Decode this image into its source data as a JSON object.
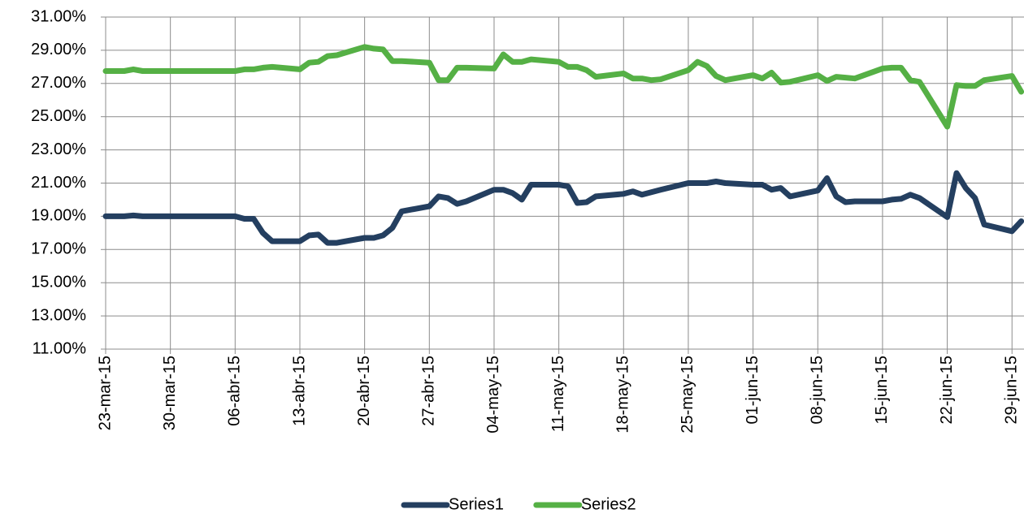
{
  "chart_data": {
    "type": "line",
    "x": [
      "2015-03-23",
      "2015-03-24",
      "2015-03-25",
      "2015-03-26",
      "2015-03-27",
      "2015-03-30",
      "2015-03-31",
      "2015-04-01",
      "2015-04-02",
      "2015-04-03",
      "2015-04-06",
      "2015-04-07",
      "2015-04-08",
      "2015-04-09",
      "2015-04-10",
      "2015-04-13",
      "2015-04-14",
      "2015-04-15",
      "2015-04-16",
      "2015-04-17",
      "2015-04-20",
      "2015-04-21",
      "2015-04-22",
      "2015-04-23",
      "2015-04-24",
      "2015-04-27",
      "2015-04-28",
      "2015-04-29",
      "2015-04-30",
      "2015-05-01",
      "2015-05-04",
      "2015-05-05",
      "2015-05-06",
      "2015-05-07",
      "2015-05-08",
      "2015-05-11",
      "2015-05-12",
      "2015-05-13",
      "2015-05-14",
      "2015-05-15",
      "2015-05-18",
      "2015-05-19",
      "2015-05-20",
      "2015-05-21",
      "2015-05-22",
      "2015-05-25",
      "2015-05-26",
      "2015-05-27",
      "2015-05-28",
      "2015-05-29",
      "2015-06-01",
      "2015-06-02",
      "2015-06-03",
      "2015-06-04",
      "2015-06-05",
      "2015-06-08",
      "2015-06-09",
      "2015-06-10",
      "2015-06-11",
      "2015-06-12",
      "2015-06-15",
      "2015-06-16",
      "2015-06-17",
      "2015-06-18",
      "2015-06-19",
      "2015-06-22",
      "2015-06-23",
      "2015-06-24",
      "2015-06-25",
      "2015-06-26",
      "2015-06-29",
      "2015-06-30"
    ],
    "series": [
      {
        "name": "Series1",
        "color": "#243f60",
        "values": [
          19.0,
          19.0,
          19.0,
          19.05,
          19.0,
          19.0,
          19.0,
          19.0,
          19.0,
          19.0,
          19.0,
          18.85,
          18.85,
          18.0,
          17.5,
          17.5,
          17.85,
          17.9,
          17.4,
          17.4,
          17.7,
          17.7,
          17.85,
          18.3,
          19.3,
          19.6,
          20.2,
          20.1,
          19.75,
          19.9,
          20.6,
          20.6,
          20.4,
          20.0,
          20.9,
          20.9,
          20.8,
          19.8,
          19.85,
          20.2,
          20.35,
          20.5,
          20.3,
          20.45,
          20.6,
          21.0,
          21.0,
          21.0,
          21.1,
          21.0,
          20.9,
          20.9,
          20.6,
          20.7,
          20.2,
          20.55,
          21.3,
          20.2,
          19.85,
          19.9,
          19.9,
          20.0,
          20.05,
          20.3,
          20.1,
          18.95,
          21.6,
          20.7,
          20.1,
          18.5,
          18.1,
          18.7
        ]
      },
      {
        "name": "Series2",
        "color": "#55b045",
        "values": [
          27.75,
          27.75,
          27.75,
          27.85,
          27.75,
          27.75,
          27.75,
          27.75,
          27.75,
          27.75,
          27.75,
          27.85,
          27.85,
          27.95,
          28.0,
          27.85,
          28.25,
          28.3,
          28.65,
          28.7,
          29.2,
          29.1,
          29.05,
          28.35,
          28.35,
          28.25,
          27.2,
          27.2,
          27.95,
          27.95,
          27.9,
          28.75,
          28.3,
          28.3,
          28.45,
          28.3,
          28.0,
          28.0,
          27.8,
          27.4,
          27.6,
          27.3,
          27.3,
          27.2,
          27.25,
          27.8,
          28.3,
          28.05,
          27.45,
          27.2,
          27.5,
          27.3,
          27.65,
          27.05,
          27.1,
          27.5,
          27.15,
          27.4,
          27.35,
          27.3,
          27.9,
          27.95,
          27.95,
          27.2,
          27.1,
          24.4,
          26.9,
          26.85,
          26.85,
          27.2,
          27.45,
          26.5
        ]
      }
    ],
    "xlim": [
      "2015-03-23",
      "2015-06-30"
    ],
    "xticks": [
      {
        "value": "2015-03-23",
        "label": "23-mar-15"
      },
      {
        "value": "2015-03-30",
        "label": "30-mar-15"
      },
      {
        "value": "2015-04-06",
        "label": "06-abr-15"
      },
      {
        "value": "2015-04-13",
        "label": "13-abr-15"
      },
      {
        "value": "2015-04-20",
        "label": "20-abr-15"
      },
      {
        "value": "2015-04-27",
        "label": "27-abr-15"
      },
      {
        "value": "2015-05-04",
        "label": "04-may-15"
      },
      {
        "value": "2015-05-11",
        "label": "11-may-15"
      },
      {
        "value": "2015-05-18",
        "label": "18-may-15"
      },
      {
        "value": "2015-05-25",
        "label": "25-may-15"
      },
      {
        "value": "2015-06-01",
        "label": "01-jun-15"
      },
      {
        "value": "2015-06-08",
        "label": "08-jun-15"
      },
      {
        "value": "2015-06-15",
        "label": "15-jun-15"
      },
      {
        "value": "2015-06-22",
        "label": "22-jun-15"
      },
      {
        "value": "2015-06-29",
        "label": "29-jun-15"
      }
    ],
    "ylim": [
      11,
      31
    ],
    "yticks": [
      {
        "value": 11,
        "label": "11.00%"
      },
      {
        "value": 13,
        "label": "13.00%"
      },
      {
        "value": 15,
        "label": "15.00%"
      },
      {
        "value": 17,
        "label": "17.00%"
      },
      {
        "value": 19,
        "label": "19.00%"
      },
      {
        "value": 21,
        "label": "21.00%"
      },
      {
        "value": 23,
        "label": "23.00%"
      },
      {
        "value": 25,
        "label": "25.00%"
      },
      {
        "value": 27,
        "label": "27.00%"
      },
      {
        "value": 29,
        "label": "29.00%"
      },
      {
        "value": 31,
        "label": "31.00%"
      }
    ],
    "grid": true,
    "legend": "bottom"
  }
}
